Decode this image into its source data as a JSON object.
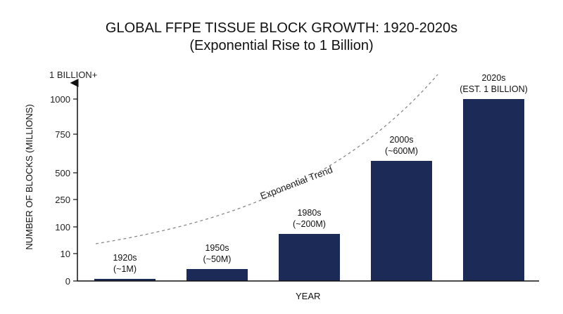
{
  "chart_data": {
    "type": "bar",
    "title": "GLOBAL FFPE TISSUE BLOCK GROWTH: 1920-2020s",
    "subtitle": "(Exponential Rise to 1 Billion)",
    "xlabel": "YEAR",
    "ylabel": "NUMBER OF BLOCKS (MILLIONS)",
    "y_axis_top_label": "1 BILLION+",
    "y_ticks": [
      "0",
      "10",
      "100",
      "250",
      "500",
      "750",
      "1000"
    ],
    "y_tick_values": [
      0,
      10,
      100,
      250,
      500,
      750,
      1000
    ],
    "categories": [
      "1920s",
      "1950s",
      "1980s",
      "2000s",
      "2020s"
    ],
    "data_labels": [
      "(~1M)",
      "(~50M)",
      "(~200M)",
      "(~600M)",
      "(EST. 1 BILLION)"
    ],
    "values": [
      1,
      50,
      200,
      600,
      1000
    ],
    "scale": "non-linear",
    "trend_label": "Exponential Trend",
    "bar_color": "#1c2a57",
    "trend_color": "#888888",
    "grid": false,
    "legend": "none"
  }
}
